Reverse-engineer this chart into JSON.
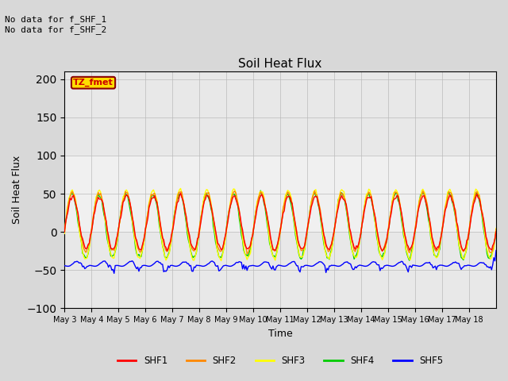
{
  "title": "Soil Heat Flux",
  "xlabel": "Time",
  "ylabel": "Soil Heat Flux",
  "ylim": [
    -100,
    210
  ],
  "yticks": [
    -100,
    -50,
    0,
    50,
    100,
    150,
    200
  ],
  "annotation_text": "No data for f_SHF_1\nNo data for f_SHF_2",
  "legend_box_text": "TZ_fmet",
  "legend_box_color": "#ffdd00",
  "legend_box_edge": "#8B0000",
  "legend_entries": [
    "SHF1",
    "SHF2",
    "SHF3",
    "SHF4",
    "SHF5"
  ],
  "legend_colors": [
    "#ff0000",
    "#ff8800",
    "#ffff00",
    "#00cc00",
    "#0000ff"
  ],
  "background_color": "#d8d8d8",
  "plot_bg_color": "#e8e8e8",
  "plot_bg_light": "#f0f0f0",
  "xtick_labels": [
    "May 3",
    "May 4",
    "May 5",
    "May 6",
    "May 7",
    "May 8",
    "May 9",
    "May 10",
    "May 11",
    "May 12",
    "May 13",
    "May 14",
    "May 15",
    "May 16",
    "May 17",
    "May 18"
  ],
  "num_days": 16,
  "figsize": [
    6.4,
    4.8
  ],
  "dpi": 100
}
